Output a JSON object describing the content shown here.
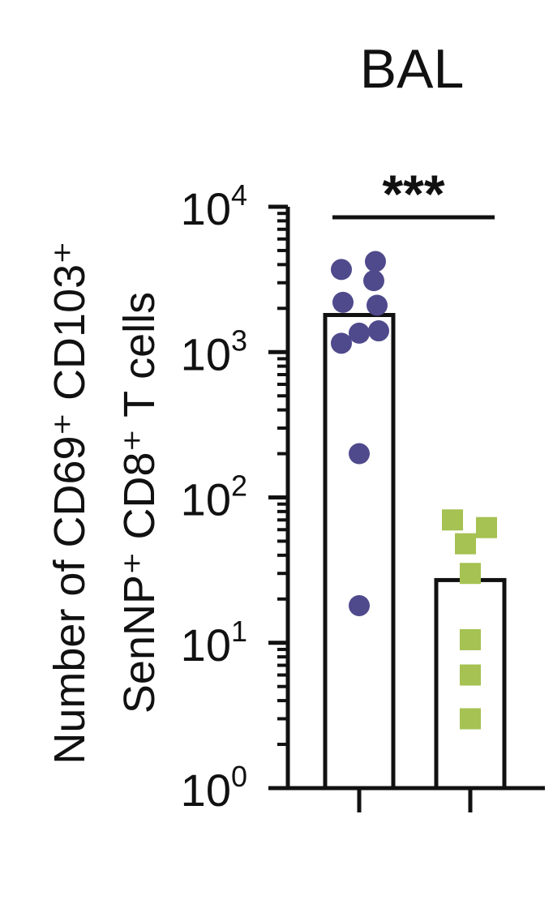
{
  "chart_data": {
    "type": "bar",
    "title": "BAL",
    "ylabel_line1": "Number of CD69⁺ CD103⁺",
    "ylabel_line2": "SenNP⁺ CD8⁺ T cells",
    "yscale": "log",
    "ylim": [
      1,
      10000
    ],
    "yticks": [
      {
        "value": 1,
        "base": "10",
        "exp": "0"
      },
      {
        "value": 10,
        "base": "10",
        "exp": "1"
      },
      {
        "value": 100,
        "base": "10",
        "exp": "2"
      },
      {
        "value": 1000,
        "base": "10",
        "exp": "3"
      },
      {
        "value": 10000,
        "base": "10",
        "exp": "4"
      }
    ],
    "categories": [
      "",
      ""
    ],
    "bars": [
      1800,
      27
    ],
    "series": [
      {
        "points": [
          4200,
          3700,
          3100,
          2200,
          2100,
          1400,
          1350,
          1150,
          200,
          18
        ],
        "color": "#4f4a8c",
        "marker": "circle"
      },
      {
        "points": [
          70,
          62,
          48,
          30,
          10.5,
          6,
          3
        ],
        "color": "#a5c252",
        "marker": "square"
      }
    ],
    "significance": "***",
    "grid": false,
    "legend": "none"
  }
}
